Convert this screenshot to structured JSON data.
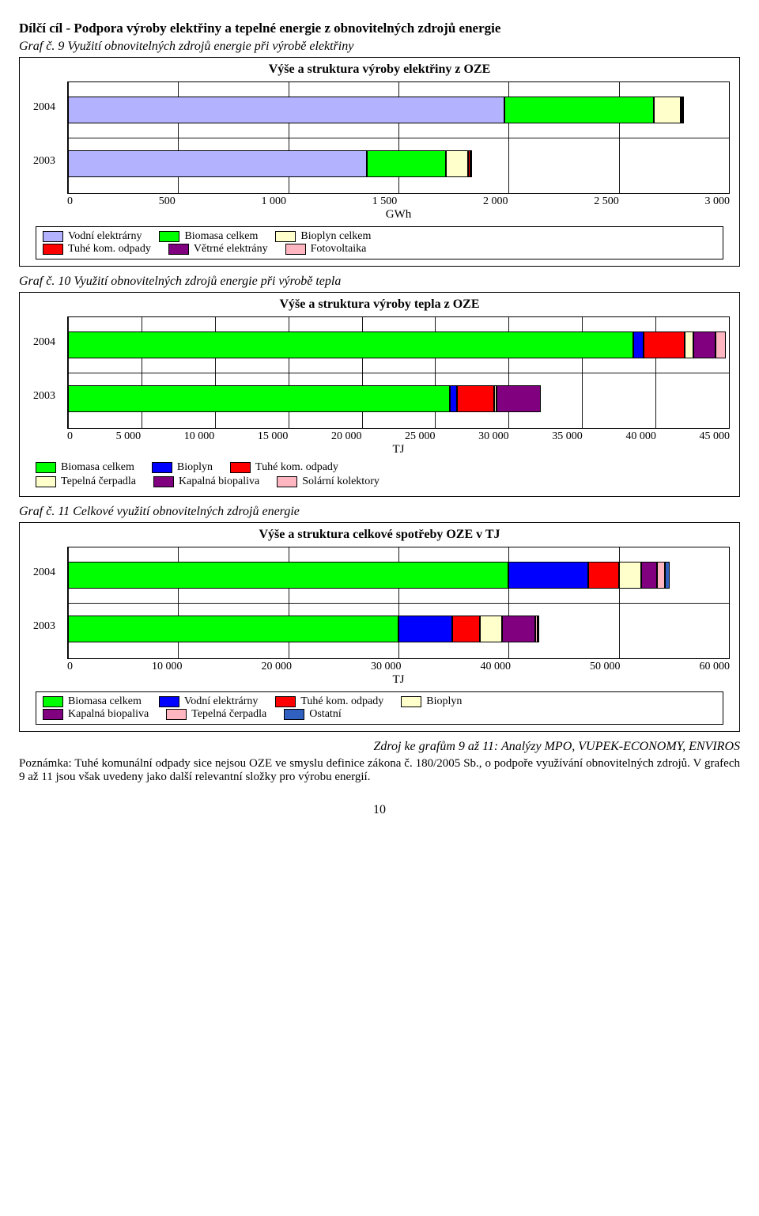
{
  "page": {
    "title": "Dílčí cíl - Podpora výroby elektřiny a tepelné energie z obnovitelných zdrojů energie",
    "number": "10"
  },
  "graph9": {
    "caption": "Graf č. 9 Využití obnovitelných zdrojů energie při výrobě elektřiny",
    "title": "Výše a struktura výroby elektřiny z OZE",
    "type": "bar",
    "categories": [
      "2004",
      "2003"
    ],
    "segments": {
      "2004": [
        1980,
        680,
        120,
        10,
        3,
        0
      ],
      "2003": [
        1355,
        360,
        100,
        10,
        2,
        0
      ]
    },
    "colors": [
      "#b2b2ff",
      "#00ff00",
      "#ffffcc",
      "#ff0000",
      "#800080",
      "#ffb6c1"
    ],
    "labels": [
      "Vodní elektrárny",
      "Biomasa celkem",
      "Bioplyn celkem",
      "Tuhé kom. odpady",
      "Větrné elektrány",
      "Fotovoltaika"
    ],
    "ticks": [
      "0",
      "500",
      "1 000",
      "1 500",
      "2 000",
      "2 500",
      "3 000"
    ],
    "xmax": 3000,
    "xaxis_label": "GWh"
  },
  "graph10": {
    "caption": "Graf č. 10 Využití obnovitelných zdrojů energie při výrobě tepla",
    "title": "Výše a struktura výroby tepla z OZE",
    "type": "bar",
    "categories": [
      "2004",
      "2003"
    ],
    "segments": {
      "2004": [
        38500,
        700,
        2800,
        600,
        1500,
        700
      ],
      "2003": [
        26000,
        500,
        2500,
        200,
        3000,
        0
      ]
    },
    "colors": [
      "#00ff00",
      "#0000ff",
      "#ff0000",
      "#ffffcc",
      "#800080",
      "#ffb6c1"
    ],
    "labels": [
      "Biomasa celkem",
      "Bioplyn",
      "Tuhé kom. odpady",
      "Tepelná čerpadla",
      "Kapalná biopaliva",
      "Solární kolektory"
    ],
    "ticks": [
      "0",
      "5 000",
      "10 000",
      "15 000",
      "20 000",
      "25 000",
      "30 000",
      "35 000",
      "40 000",
      "45 000"
    ],
    "xmax": 45000,
    "xaxis_label": "TJ"
  },
  "graph11": {
    "caption": "Graf č. 11 Celkové využití obnovitelných zdrojů energie",
    "title": "Výše a struktura celkové spotřeby OZE v TJ",
    "type": "bar",
    "categories": [
      "2004",
      "2003"
    ],
    "segments": {
      "2004": [
        40000,
        7200,
        2800,
        2000,
        1500,
        700,
        400
      ],
      "2003": [
        30000,
        4900,
        2500,
        2000,
        3000,
        200,
        200
      ]
    },
    "colors": [
      "#00ff00",
      "#0000ff",
      "#ff0000",
      "#ffffcc",
      "#800080",
      "#ffb6c1",
      "#3060c0"
    ],
    "labels": [
      "Biomasa celkem",
      "Vodní elektrárny",
      "Tuhé kom. odpady",
      "Bioplyn",
      "Kapalná biopaliva",
      "Tepelná čerpadla",
      "Ostatní"
    ],
    "ticks": [
      "0",
      "10 000",
      "20 000",
      "30 000",
      "40 000",
      "50 000",
      "60 000"
    ],
    "xmax": 60000,
    "xaxis_label": "TJ"
  },
  "source": "Zdroj ke grafům 9 až 11: Analýzy MPO, VUPEK-ECONOMY, ENVIROS",
  "note_label": "Poznámka: ",
  "note": "Tuhé komunální odpady sice nejsou OZE ve smyslu definice zákona č. 180/2005 Sb., o podpoře využívání obnovitelných zdrojů. V grafech 9 až 11 jsou však uvedeny jako další relevantní složky pro výrobu energií."
}
